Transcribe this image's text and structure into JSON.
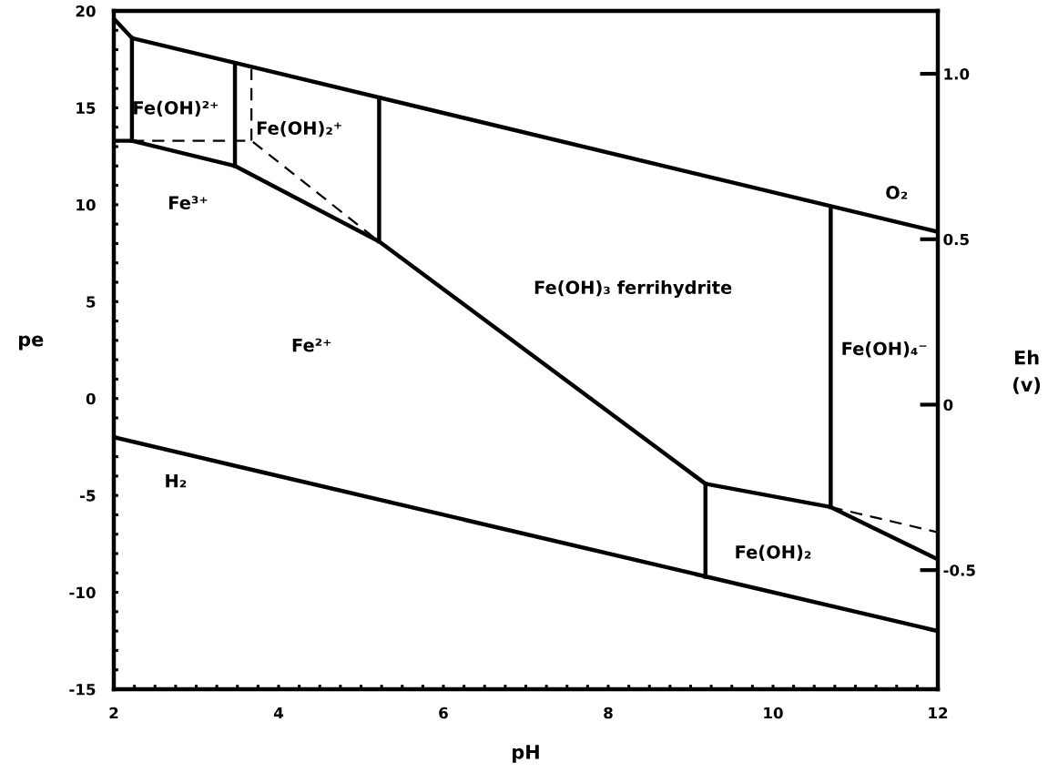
{
  "chart_data": {
    "type": "line",
    "xlabel": "pH",
    "ylabel": "pe",
    "y2label": "Eh\n(v)",
    "xlim": [
      2,
      12
    ],
    "ylim": [
      -15,
      20
    ],
    "y2lim": [
      -0.86,
      1.19
    ],
    "xticks": [
      2,
      {
        "value": 2.25,
        "label": null
      },
      {
        "value": 2.5,
        "label": null
      },
      {
        "value": 2.75,
        "label": null
      },
      {
        "value": 3,
        "label": null
      },
      {
        "value": 3.25,
        "label": null
      },
      {
        "value": 3.5,
        "label": null
      },
      {
        "value": 3.75,
        "label": null
      },
      4,
      {
        "value": 4.25,
        "label": null
      },
      {
        "value": 4.5,
        "label": null
      },
      {
        "value": 4.75,
        "label": null
      },
      {
        "value": 5,
        "label": null
      },
      {
        "value": 5.25,
        "label": null
      },
      {
        "value": 5.5,
        "label": null
      },
      {
        "value": 5.75,
        "label": null
      },
      6,
      {
        "value": 6.25,
        "label": null
      },
      {
        "value": 6.5,
        "label": null
      },
      {
        "value": 6.75,
        "label": null
      },
      {
        "value": 7,
        "label": null
      },
      {
        "value": 7.25,
        "label": null
      },
      {
        "value": 7.5,
        "label": null
      },
      {
        "value": 7.75,
        "label": null
      },
      8,
      {
        "value": 8.25,
        "label": null
      },
      {
        "value": 8.5,
        "label": null
      },
      {
        "value": 8.75,
        "label": null
      },
      {
        "value": 9,
        "label": null
      },
      {
        "value": 9.25,
        "label": null
      },
      {
        "value": 9.5,
        "label": null
      },
      {
        "value": 9.75,
        "label": null
      },
      10,
      {
        "value": 10.25,
        "label": null
      },
      {
        "value": 10.5,
        "label": null
      },
      {
        "value": 10.75,
        "label": null
      },
      {
        "value": 11,
        "label": null
      },
      {
        "value": 11.25,
        "label": null
      },
      {
        "value": 11.5,
        "label": null
      },
      {
        "value": 11.75,
        "label": null
      },
      12
    ],
    "yticks": [
      -15,
      {
        "value": -14,
        "label": null
      },
      {
        "value": -13,
        "label": null
      },
      {
        "value": -12,
        "label": null
      },
      {
        "value": -11,
        "label": null
      },
      -10,
      {
        "value": -9,
        "label": null
      },
      {
        "value": -8,
        "label": null
      },
      {
        "value": -7,
        "label": null
      },
      {
        "value": -6,
        "label": null
      },
      -5,
      {
        "value": -4,
        "label": null
      },
      {
        "value": -3,
        "label": null
      },
      {
        "value": -2,
        "label": null
      },
      {
        "value": -1,
        "label": null
      },
      0,
      {
        "value": 1,
        "label": null
      },
      {
        "value": 2,
        "label": null
      },
      {
        "value": 3,
        "label": null
      },
      {
        "value": 4,
        "label": null
      },
      5,
      {
        "value": 6,
        "label": null
      },
      {
        "value": 7,
        "label": null
      },
      {
        "value": 8,
        "label": null
      },
      {
        "value": 9,
        "label": null
      },
      10,
      {
        "value": 11,
        "label": null
      },
      {
        "value": 12,
        "label": null
      },
      {
        "value": 13,
        "label": null
      },
      {
        "value": 14,
        "label": null
      },
      15,
      {
        "value": 16,
        "label": null
      },
      {
        "value": 17,
        "label": null
      },
      {
        "value": 18,
        "label": null
      },
      {
        "value": 19,
        "label": null
      },
      20
    ],
    "y2ticks": [
      -0.5,
      0,
      0.5,
      {
        "value": 1,
        "label": "1.0"
      }
    ],
    "grid": false,
    "legend": false,
    "marker": "none",
    "series": [
      {
        "color": "#000000",
        "x": [
          2,
          2.22,
          12
        ],
        "values": [
          19.6,
          18.6,
          8.6
        ]
      },
      {
        "color": "#000000",
        "x": [
          2,
          12
        ],
        "values": [
          -2,
          -12
        ]
      },
      {
        "color": "#000000",
        "x": [
          2.22,
          2.22
        ],
        "values": [
          13.3,
          18.6
        ]
      },
      {
        "color": "#000000",
        "x": [
          2,
          2.22,
          3.47,
          5.22,
          9.18,
          10.7,
          12
        ],
        "values": [
          13.3,
          13.3,
          12.0,
          8.1,
          -4.4,
          -5.6,
          -8.3
        ]
      },
      {
        "color": "#000000",
        "x": [
          3.47,
          3.47
        ],
        "values": [
          12.0,
          17.3
        ]
      },
      {
        "color": "#000000",
        "x": [
          5.22,
          5.22
        ],
        "values": [
          8.1,
          15.5
        ]
      },
      {
        "color": "#000000",
        "x": [
          9.18,
          9.18
        ],
        "values": [
          -4.4,
          -9.2
        ]
      },
      {
        "color": "#000000",
        "x": [
          10.7,
          10.7
        ],
        "values": [
          -5.6,
          9.8
        ]
      },
      {
        "color": "#000000",
        "line_style": "dashed",
        "x": [
          2.22,
          3.67,
          5.22
        ],
        "values": [
          13.3,
          13.3,
          8.1
        ]
      },
      {
        "color": "#000000",
        "line_style": "dashed",
        "x": [
          3.67,
          3.67
        ],
        "values": [
          13.3,
          17.0
        ]
      },
      {
        "color": "#000000",
        "line_style": "dashed",
        "x": [
          10.7,
          12
        ],
        "values": [
          -5.6,
          -6.9
        ]
      }
    ],
    "annotations": [
      "Fe(OH)²⁺",
      "Fe(OH)₂⁺",
      "Fe³⁺",
      "Fe²⁺",
      "Fe(OH)₃ ferrihydrite",
      "Fe(OH)₄⁻",
      "Fe(OH)₂",
      "O₂",
      "H₂"
    ]
  }
}
